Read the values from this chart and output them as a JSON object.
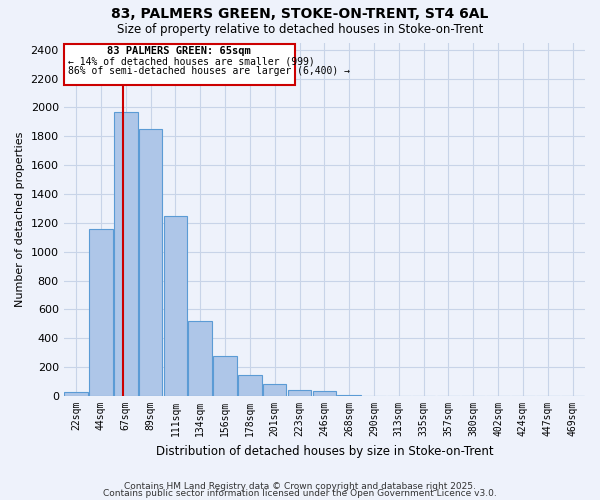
{
  "title": "83, PALMERS GREEN, STOKE-ON-TRENT, ST4 6AL",
  "subtitle": "Size of property relative to detached houses in Stoke-on-Trent",
  "xlabel": "Distribution of detached houses by size in Stoke-on-Trent",
  "ylabel": "Number of detached properties",
  "bar_values": [
    25,
    1160,
    1970,
    1850,
    1250,
    520,
    275,
    148,
    85,
    42,
    38,
    5,
    2,
    1,
    0,
    0,
    0,
    0,
    0,
    0,
    0
  ],
  "bin_labels": [
    "22sqm",
    "44sqm",
    "67sqm",
    "89sqm",
    "111sqm",
    "134sqm",
    "156sqm",
    "178sqm",
    "201sqm",
    "223sqm",
    "246sqm",
    "268sqm",
    "290sqm",
    "313sqm",
    "335sqm",
    "357sqm",
    "380sqm",
    "402sqm",
    "424sqm",
    "447sqm",
    "469sqm"
  ],
  "bar_color": "#aec6e8",
  "bar_edge_color": "#5b9bd5",
  "property_line_x": 2,
  "property_line_color": "#cc0000",
  "annotation_title": "83 PALMERS GREEN: 65sqm",
  "annotation_line1": "← 14% of detached houses are smaller (999)",
  "annotation_line2": "86% of semi-detached houses are larger (6,400) →",
  "annotation_box_color": "#cc0000",
  "ylim": [
    0,
    2450
  ],
  "xlim": [
    -0.5,
    20.5
  ],
  "yticks": [
    0,
    200,
    400,
    600,
    800,
    1000,
    1200,
    1400,
    1600,
    1800,
    2000,
    2200,
    2400
  ],
  "background_color": "#eef2fb",
  "grid_color": "#c8d4e8",
  "footer1": "Contains HM Land Registry data © Crown copyright and database right 2025.",
  "footer2": "Contains public sector information licensed under the Open Government Licence v3.0."
}
